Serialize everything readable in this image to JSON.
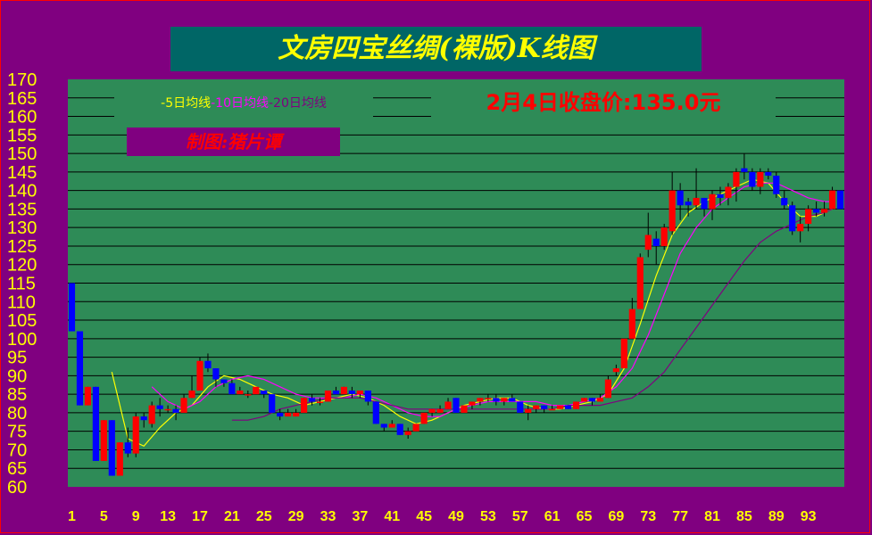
{
  "title": "文房四宝丝绸(裸版)K线图",
  "legend": {
    "ma5": "-5日均线",
    "ma10": "-10日均线",
    "ma20": "-20日均线"
  },
  "author": "制图:猪片谭",
  "close_label": "2月4日收盘价:135.0元",
  "colors": {
    "background": "#800080",
    "plot_bg": "#2e8b57",
    "up": "#ff0000",
    "down": "#0000ff",
    "ma5": "#ffff00",
    "ma10": "#ff00ff",
    "ma20": "#800080",
    "labels": "#ffff00"
  },
  "chart_data": {
    "type": "candlestick",
    "ylim": [
      60,
      170
    ],
    "y_ticks": [
      170,
      165,
      160,
      155,
      150,
      145,
      140,
      135,
      130,
      125,
      120,
      115,
      110,
      105,
      100,
      95,
      90,
      85,
      80,
      75,
      70,
      65,
      60
    ],
    "x_ticks": [
      "1",
      "5",
      "9",
      "13",
      "17",
      "21",
      "25",
      "29",
      "33",
      "37",
      "41",
      "45",
      "49",
      "53",
      "57",
      "61",
      "65",
      "69",
      "73",
      "77",
      "81",
      "85",
      "89",
      "93"
    ],
    "grid": "horizontal",
    "candles": [
      {
        "o": 115,
        "c": 102,
        "h": 115,
        "l": 102
      },
      {
        "o": 102,
        "c": 82,
        "h": 102,
        "l": 82
      },
      {
        "o": 82,
        "c": 87,
        "h": 87,
        "l": 82
      },
      {
        "o": 87,
        "c": 67,
        "h": 87,
        "l": 67
      },
      {
        "o": 67,
        "c": 78,
        "h": 78,
        "l": 67
      },
      {
        "o": 78,
        "c": 63,
        "h": 78,
        "l": 63
      },
      {
        "o": 63,
        "c": 72,
        "h": 72,
        "l": 63
      },
      {
        "o": 72,
        "c": 69,
        "h": 76,
        "l": 68
      },
      {
        "o": 69,
        "c": 79,
        "h": 80,
        "l": 68
      },
      {
        "o": 79,
        "c": 78,
        "h": 80,
        "l": 76
      },
      {
        "o": 77,
        "c": 82,
        "h": 83,
        "l": 76
      },
      {
        "o": 82,
        "c": 81,
        "h": 84,
        "l": 79
      },
      {
        "o": 81,
        "c": 81,
        "h": 82,
        "l": 80
      },
      {
        "o": 81,
        "c": 80,
        "h": 82,
        "l": 78
      },
      {
        "o": 80,
        "c": 84,
        "h": 85,
        "l": 80
      },
      {
        "o": 84,
        "c": 86,
        "h": 90,
        "l": 84
      },
      {
        "o": 86,
        "c": 94,
        "h": 95,
        "l": 86
      },
      {
        "o": 94,
        "c": 92,
        "h": 96,
        "l": 91
      },
      {
        "o": 92,
        "c": 89,
        "h": 92,
        "l": 87
      },
      {
        "o": 89,
        "c": 88,
        "h": 89,
        "l": 87
      },
      {
        "o": 88,
        "c": 85,
        "h": 89,
        "l": 85
      },
      {
        "o": 85,
        "c": 86,
        "h": 87,
        "l": 85
      },
      {
        "o": 85,
        "c": 85,
        "h": 86,
        "l": 84
      },
      {
        "o": 85,
        "c": 87,
        "h": 87,
        "l": 85
      },
      {
        "o": 86,
        "c": 85,
        "h": 86,
        "l": 84
      },
      {
        "o": 85,
        "c": 80,
        "h": 85,
        "l": 80
      },
      {
        "o": 80,
        "c": 79,
        "h": 81,
        "l": 78
      },
      {
        "o": 79,
        "c": 80,
        "h": 81,
        "l": 79
      },
      {
        "o": 79,
        "c": 80,
        "h": 81,
        "l": 79
      },
      {
        "o": 80,
        "c": 84,
        "h": 84,
        "l": 80
      },
      {
        "o": 84,
        "c": 83,
        "h": 85,
        "l": 82
      },
      {
        "o": 83,
        "c": 83,
        "h": 84,
        "l": 82
      },
      {
        "o": 83,
        "c": 86,
        "h": 86,
        "l": 83
      },
      {
        "o": 86,
        "c": 85,
        "h": 87,
        "l": 85
      },
      {
        "o": 85,
        "c": 87,
        "h": 87,
        "l": 85
      },
      {
        "o": 86,
        "c": 85,
        "h": 87,
        "l": 84
      },
      {
        "o": 85,
        "c": 86,
        "h": 86,
        "l": 84
      },
      {
        "o": 86,
        "c": 83,
        "h": 86,
        "l": 82
      },
      {
        "o": 83,
        "c": 77,
        "h": 83,
        "l": 77
      },
      {
        "o": 77,
        "c": 76,
        "h": 77,
        "l": 75
      },
      {
        "o": 76,
        "c": 77,
        "h": 78,
        "l": 76
      },
      {
        "o": 77,
        "c": 74,
        "h": 77,
        "l": 74
      },
      {
        "o": 74,
        "c": 75,
        "h": 76,
        "l": 73
      },
      {
        "o": 75,
        "c": 77,
        "h": 77,
        "l": 75
      },
      {
        "o": 77,
        "c": 80,
        "h": 80,
        "l": 77
      },
      {
        "o": 80,
        "c": 81,
        "h": 81,
        "l": 79
      },
      {
        "o": 80,
        "c": 81,
        "h": 82,
        "l": 80
      },
      {
        "o": 81,
        "c": 83,
        "h": 84,
        "l": 81
      },
      {
        "o": 84,
        "c": 80,
        "h": 84,
        "l": 80
      },
      {
        "o": 80,
        "c": 82,
        "h": 82,
        "l": 80
      },
      {
        "o": 82,
        "c": 83,
        "h": 83,
        "l": 81
      },
      {
        "o": 83,
        "c": 84,
        "h": 84,
        "l": 82
      },
      {
        "o": 84,
        "c": 84,
        "h": 85,
        "l": 83
      },
      {
        "o": 84,
        "c": 83,
        "h": 85,
        "l": 82
      },
      {
        "o": 83,
        "c": 84,
        "h": 84,
        "l": 82
      },
      {
        "o": 84,
        "c": 83,
        "h": 85,
        "l": 83
      },
      {
        "o": 83,
        "c": 80,
        "h": 83,
        "l": 80
      },
      {
        "o": 80,
        "c": 81,
        "h": 82,
        "l": 78
      },
      {
        "o": 81,
        "c": 82,
        "h": 82,
        "l": 80
      },
      {
        "o": 82,
        "c": 81,
        "h": 82,
        "l": 80
      },
      {
        "o": 81,
        "c": 81,
        "h": 82,
        "l": 81
      },
      {
        "o": 81,
        "c": 82,
        "h": 82,
        "l": 81
      },
      {
        "o": 82,
        "c": 81,
        "h": 82,
        "l": 81
      },
      {
        "o": 81,
        "c": 83,
        "h": 83,
        "l": 81
      },
      {
        "o": 83,
        "c": 84,
        "h": 84,
        "l": 83
      },
      {
        "o": 84,
        "c": 83,
        "h": 84,
        "l": 82
      },
      {
        "o": 83,
        "c": 84,
        "h": 85,
        "l": 83
      },
      {
        "o": 84,
        "c": 89,
        "h": 90,
        "l": 84
      },
      {
        "o": 91,
        "c": 92,
        "h": 93,
        "l": 90
      },
      {
        "o": 92,
        "c": 100,
        "h": 100,
        "l": 92
      },
      {
        "o": 100,
        "c": 108,
        "h": 111,
        "l": 100
      },
      {
        "o": 108,
        "c": 122,
        "h": 123,
        "l": 108
      },
      {
        "o": 124,
        "c": 128,
        "h": 134,
        "l": 122
      },
      {
        "o": 127,
        "c": 125,
        "h": 129,
        "l": 120
      },
      {
        "o": 125,
        "c": 130,
        "h": 131,
        "l": 124
      },
      {
        "o": 129,
        "c": 140,
        "h": 145,
        "l": 128
      },
      {
        "o": 140,
        "c": 136,
        "h": 142,
        "l": 132
      },
      {
        "o": 137,
        "c": 136,
        "h": 138,
        "l": 133
      },
      {
        "o": 136,
        "c": 138,
        "h": 146,
        "l": 135
      },
      {
        "o": 138,
        "c": 135,
        "h": 138,
        "l": 133
      },
      {
        "o": 135,
        "c": 139,
        "h": 140,
        "l": 132
      },
      {
        "o": 139,
        "c": 138,
        "h": 141,
        "l": 136
      },
      {
        "o": 138,
        "c": 141,
        "h": 142,
        "l": 136
      },
      {
        "o": 141,
        "c": 145,
        "h": 146,
        "l": 137
      },
      {
        "o": 146,
        "c": 145,
        "h": 150,
        "l": 143
      },
      {
        "o": 145,
        "c": 141,
        "h": 146,
        "l": 140
      },
      {
        "o": 141,
        "c": 145,
        "h": 146,
        "l": 139
      },
      {
        "o": 145,
        "c": 144,
        "h": 146,
        "l": 143
      },
      {
        "o": 144,
        "c": 139,
        "h": 145,
        "l": 138
      },
      {
        "o": 138,
        "c": 136,
        "h": 140,
        "l": 135
      },
      {
        "o": 136,
        "c": 129,
        "h": 137,
        "l": 128
      },
      {
        "o": 129,
        "c": 131,
        "h": 133,
        "l": 126
      },
      {
        "o": 131,
        "c": 135,
        "h": 136,
        "l": 129
      },
      {
        "o": 135,
        "c": 134,
        "h": 137,
        "l": 133
      },
      {
        "o": 134,
        "c": 135,
        "h": 137,
        "l": 133
      },
      {
        "o": 135,
        "c": 140,
        "h": 141,
        "l": 135
      },
      {
        "o": 140,
        "c": 135,
        "h": 140,
        "l": 135
      }
    ],
    "series": [
      {
        "name": "-5日均线",
        "values": [
          [
            6,
            91
          ],
          [
            8,
            73
          ],
          [
            10,
            71
          ],
          [
            12,
            76
          ],
          [
            14,
            80
          ],
          [
            16,
            82
          ],
          [
            18,
            87
          ],
          [
            20,
            90
          ],
          [
            22,
            89
          ],
          [
            24,
            87
          ],
          [
            26,
            85
          ],
          [
            28,
            84
          ],
          [
            30,
            82
          ],
          [
            32,
            83
          ],
          [
            34,
            84
          ],
          [
            36,
            85
          ],
          [
            38,
            84
          ],
          [
            40,
            82
          ],
          [
            42,
            79
          ],
          [
            44,
            77
          ],
          [
            46,
            78
          ],
          [
            48,
            80
          ],
          [
            50,
            82
          ],
          [
            52,
            83
          ],
          [
            54,
            84
          ],
          [
            56,
            84
          ],
          [
            58,
            82
          ],
          [
            60,
            81
          ],
          [
            62,
            81
          ],
          [
            64,
            82
          ],
          [
            66,
            83
          ],
          [
            68,
            85
          ],
          [
            70,
            92
          ],
          [
            72,
            104
          ],
          [
            74,
            117
          ],
          [
            76,
            128
          ],
          [
            78,
            134
          ],
          [
            80,
            137
          ],
          [
            82,
            139
          ],
          [
            84,
            141
          ],
          [
            86,
            143
          ],
          [
            88,
            142
          ],
          [
            90,
            137
          ],
          [
            92,
            133
          ],
          [
            94,
            133
          ],
          [
            96,
            135
          ]
        ]
      },
      {
        "name": "-10日均线",
        "values": [
          [
            11,
            87
          ],
          [
            13,
            83
          ],
          [
            15,
            81
          ],
          [
            17,
            83
          ],
          [
            19,
            87
          ],
          [
            21,
            89
          ],
          [
            23,
            90
          ],
          [
            25,
            89
          ],
          [
            27,
            87
          ],
          [
            29,
            85
          ],
          [
            31,
            84
          ],
          [
            33,
            84
          ],
          [
            35,
            84
          ],
          [
            37,
            85
          ],
          [
            39,
            84
          ],
          [
            41,
            82
          ],
          [
            43,
            80
          ],
          [
            45,
            79
          ],
          [
            47,
            79
          ],
          [
            49,
            81
          ],
          [
            51,
            82
          ],
          [
            53,
            83
          ],
          [
            55,
            83
          ],
          [
            57,
            83
          ],
          [
            59,
            83
          ],
          [
            61,
            82
          ],
          [
            63,
            82
          ],
          [
            65,
            83
          ],
          [
            67,
            84
          ],
          [
            69,
            87
          ],
          [
            71,
            92
          ],
          [
            73,
            101
          ],
          [
            75,
            112
          ],
          [
            77,
            123
          ],
          [
            79,
            130
          ],
          [
            81,
            135
          ],
          [
            83,
            138
          ],
          [
            85,
            141
          ],
          [
            87,
            142
          ],
          [
            89,
            142
          ],
          [
            91,
            140
          ],
          [
            93,
            138
          ],
          [
            95,
            137
          ],
          [
            96,
            137
          ]
        ]
      },
      {
        "name": "-20日均线",
        "values": [
          [
            21,
            78
          ],
          [
            23,
            78
          ],
          [
            25,
            79
          ],
          [
            27,
            81
          ],
          [
            29,
            82
          ],
          [
            31,
            83
          ],
          [
            33,
            84
          ],
          [
            35,
            84
          ],
          [
            37,
            84
          ],
          [
            39,
            83
          ],
          [
            41,
            82
          ],
          [
            43,
            81
          ],
          [
            45,
            81
          ],
          [
            47,
            81
          ],
          [
            49,
            81
          ],
          [
            51,
            81
          ],
          [
            53,
            81
          ],
          [
            55,
            81
          ],
          [
            57,
            81
          ],
          [
            59,
            81
          ],
          [
            61,
            81
          ],
          [
            63,
            82
          ],
          [
            65,
            82
          ],
          [
            67,
            82
          ],
          [
            69,
            83
          ],
          [
            71,
            84
          ],
          [
            73,
            87
          ],
          [
            75,
            91
          ],
          [
            77,
            97
          ],
          [
            79,
            103
          ],
          [
            81,
            109
          ],
          [
            83,
            115
          ],
          [
            85,
            121
          ],
          [
            87,
            126
          ],
          [
            89,
            129
          ],
          [
            91,
            131
          ],
          [
            93,
            133
          ],
          [
            95,
            134
          ],
          [
            96,
            135
          ]
        ]
      }
    ]
  }
}
